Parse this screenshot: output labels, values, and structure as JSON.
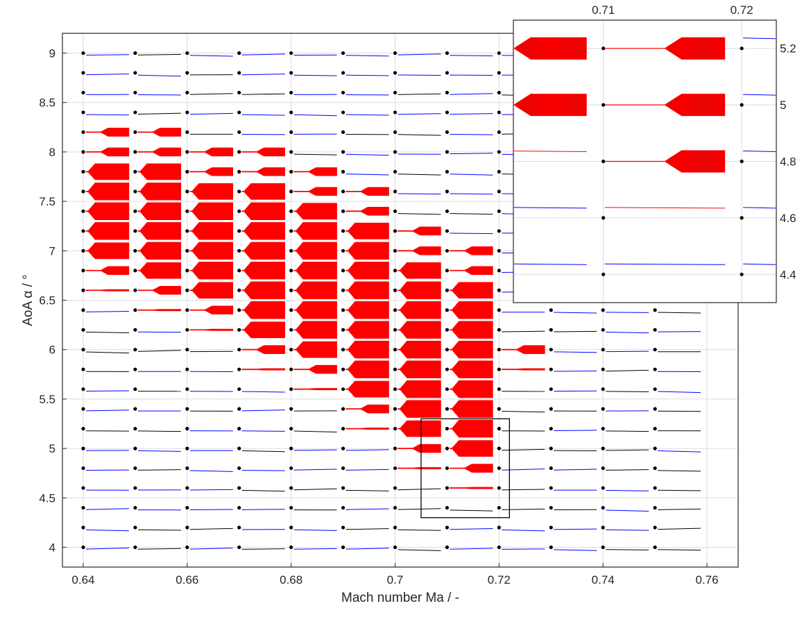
{
  "chart_data": {
    "type": "scatter",
    "xlabel": "Mach number Ma / -",
    "ylabel": "AoA α / °",
    "xlim": [
      0.636,
      0.766
    ],
    "ylim": [
      3.8,
      9.2
    ],
    "xticks": [
      "0.64",
      "0.66",
      "0.68",
      "0.7",
      "0.72",
      "0.74",
      "0.76"
    ],
    "yticks": [
      "4",
      "4.5",
      "5",
      "5.5",
      "6",
      "6.5",
      "7",
      "7.5",
      "8",
      "8.5",
      "9"
    ],
    "grid": true,
    "grid_points": {
      "mach": [
        0.64,
        0.65,
        0.66,
        0.67,
        0.68,
        0.69,
        0.7,
        0.71,
        0.72,
        0.73,
        0.74,
        0.75
      ],
      "aoa_min": 4.0,
      "aoa_max": 9.0,
      "aoa_step": 0.2,
      "marker_color": "#000000"
    },
    "colors": {
      "unstable_lco": "#ff0000",
      "damped_response": "#0000ff",
      "neutral_response": "#000000"
    },
    "lco_onset_aoa": [
      {
        "mach": 0.64,
        "aoa": 6.6
      },
      {
        "mach": 0.65,
        "aoa": 6.4
      },
      {
        "mach": 0.66,
        "aoa": 6.2
      },
      {
        "mach": 0.67,
        "aoa": 5.8
      },
      {
        "mach": 0.68,
        "aoa": 5.6
      },
      {
        "mach": 0.69,
        "aoa": 5.2
      },
      {
        "mach": 0.7,
        "aoa": 4.8
      },
      {
        "mach": 0.71,
        "aoa": 4.6
      },
      {
        "mach": 0.72,
        "aoa": 5.8
      }
    ],
    "lco_upper_aoa": [
      {
        "mach": 0.64,
        "aoa": 8.2
      },
      {
        "mach": 0.65,
        "aoa": 8.2
      },
      {
        "mach": 0.66,
        "aoa": 8.0
      },
      {
        "mach": 0.67,
        "aoa": 8.0
      },
      {
        "mach": 0.68,
        "aoa": 7.8
      },
      {
        "mach": 0.69,
        "aoa": 7.6
      },
      {
        "mach": 0.7,
        "aoa": 7.2
      },
      {
        "mach": 0.71,
        "aoa": 7.0
      },
      {
        "mach": 0.72,
        "aoa": 6.0
      }
    ],
    "zoom_box": {
      "xlim": [
        0.705,
        0.722
      ],
      "ylim": [
        4.3,
        5.3
      ]
    },
    "inset": {
      "xlim": [
        0.7035,
        0.7225
      ],
      "ylim": [
        4.3,
        5.3
      ],
      "xticks": [
        "0.71",
        "0.72"
      ],
      "yticks": [
        "4.4",
        "4.6",
        "4.8",
        "5",
        "5.2"
      ],
      "position": "top-right"
    }
  }
}
